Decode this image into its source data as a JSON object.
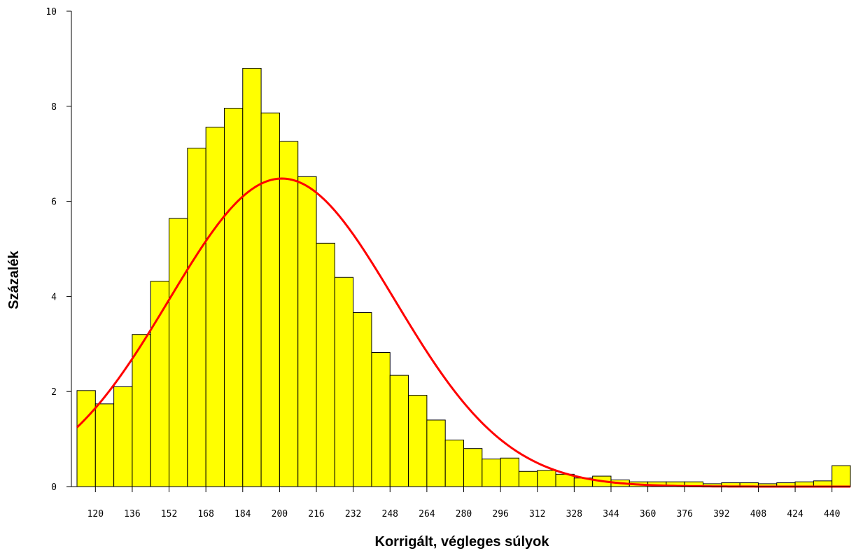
{
  "chart_data": {
    "type": "bar",
    "subtype": "histogram with fitted normal density curve",
    "xlabel": "Korrigált, végleges súlyok",
    "ylabel": "Százalék",
    "xlim": [
      112,
      448
    ],
    "ylim": [
      0,
      10
    ],
    "x_ticks": [
      120,
      136,
      152,
      168,
      184,
      200,
      216,
      232,
      248,
      264,
      280,
      296,
      312,
      328,
      344,
      360,
      376,
      392,
      408,
      424,
      440
    ],
    "y_ticks": [
      0,
      2,
      4,
      6,
      8,
      10
    ],
    "bin_width": 8,
    "bin_centers": [
      116,
      124,
      132,
      140,
      148,
      156,
      164,
      172,
      180,
      188,
      196,
      204,
      212,
      220,
      228,
      236,
      244,
      252,
      260,
      268,
      276,
      284,
      292,
      300,
      308,
      316,
      324,
      332,
      340,
      348,
      356,
      364,
      372,
      380,
      388,
      396,
      404,
      412,
      420,
      428,
      436,
      444
    ],
    "values": [
      2.02,
      1.74,
      2.1,
      3.2,
      4.32,
      5.64,
      7.12,
      7.56,
      7.96,
      8.8,
      7.86,
      7.26,
      6.52,
      5.12,
      4.4,
      3.66,
      2.82,
      2.34,
      1.92,
      1.4,
      0.98,
      0.8,
      0.58,
      0.6,
      0.32,
      0.34,
      0.26,
      0.18,
      0.22,
      0.14,
      0.1,
      0.1,
      0.1,
      0.1,
      0.06,
      0.08,
      0.08,
      0.06,
      0.08,
      0.1,
      0.12,
      0.44
    ],
    "fit_curve": {
      "type": "normal",
      "mean": 201,
      "sd": 49,
      "peak": 6.48
    },
    "colors": {
      "bar_fill": "#ffff00",
      "bar_stroke": "#000000",
      "curve": "#ff0000",
      "axis": "#000000"
    },
    "grid": false,
    "legend": "none"
  }
}
